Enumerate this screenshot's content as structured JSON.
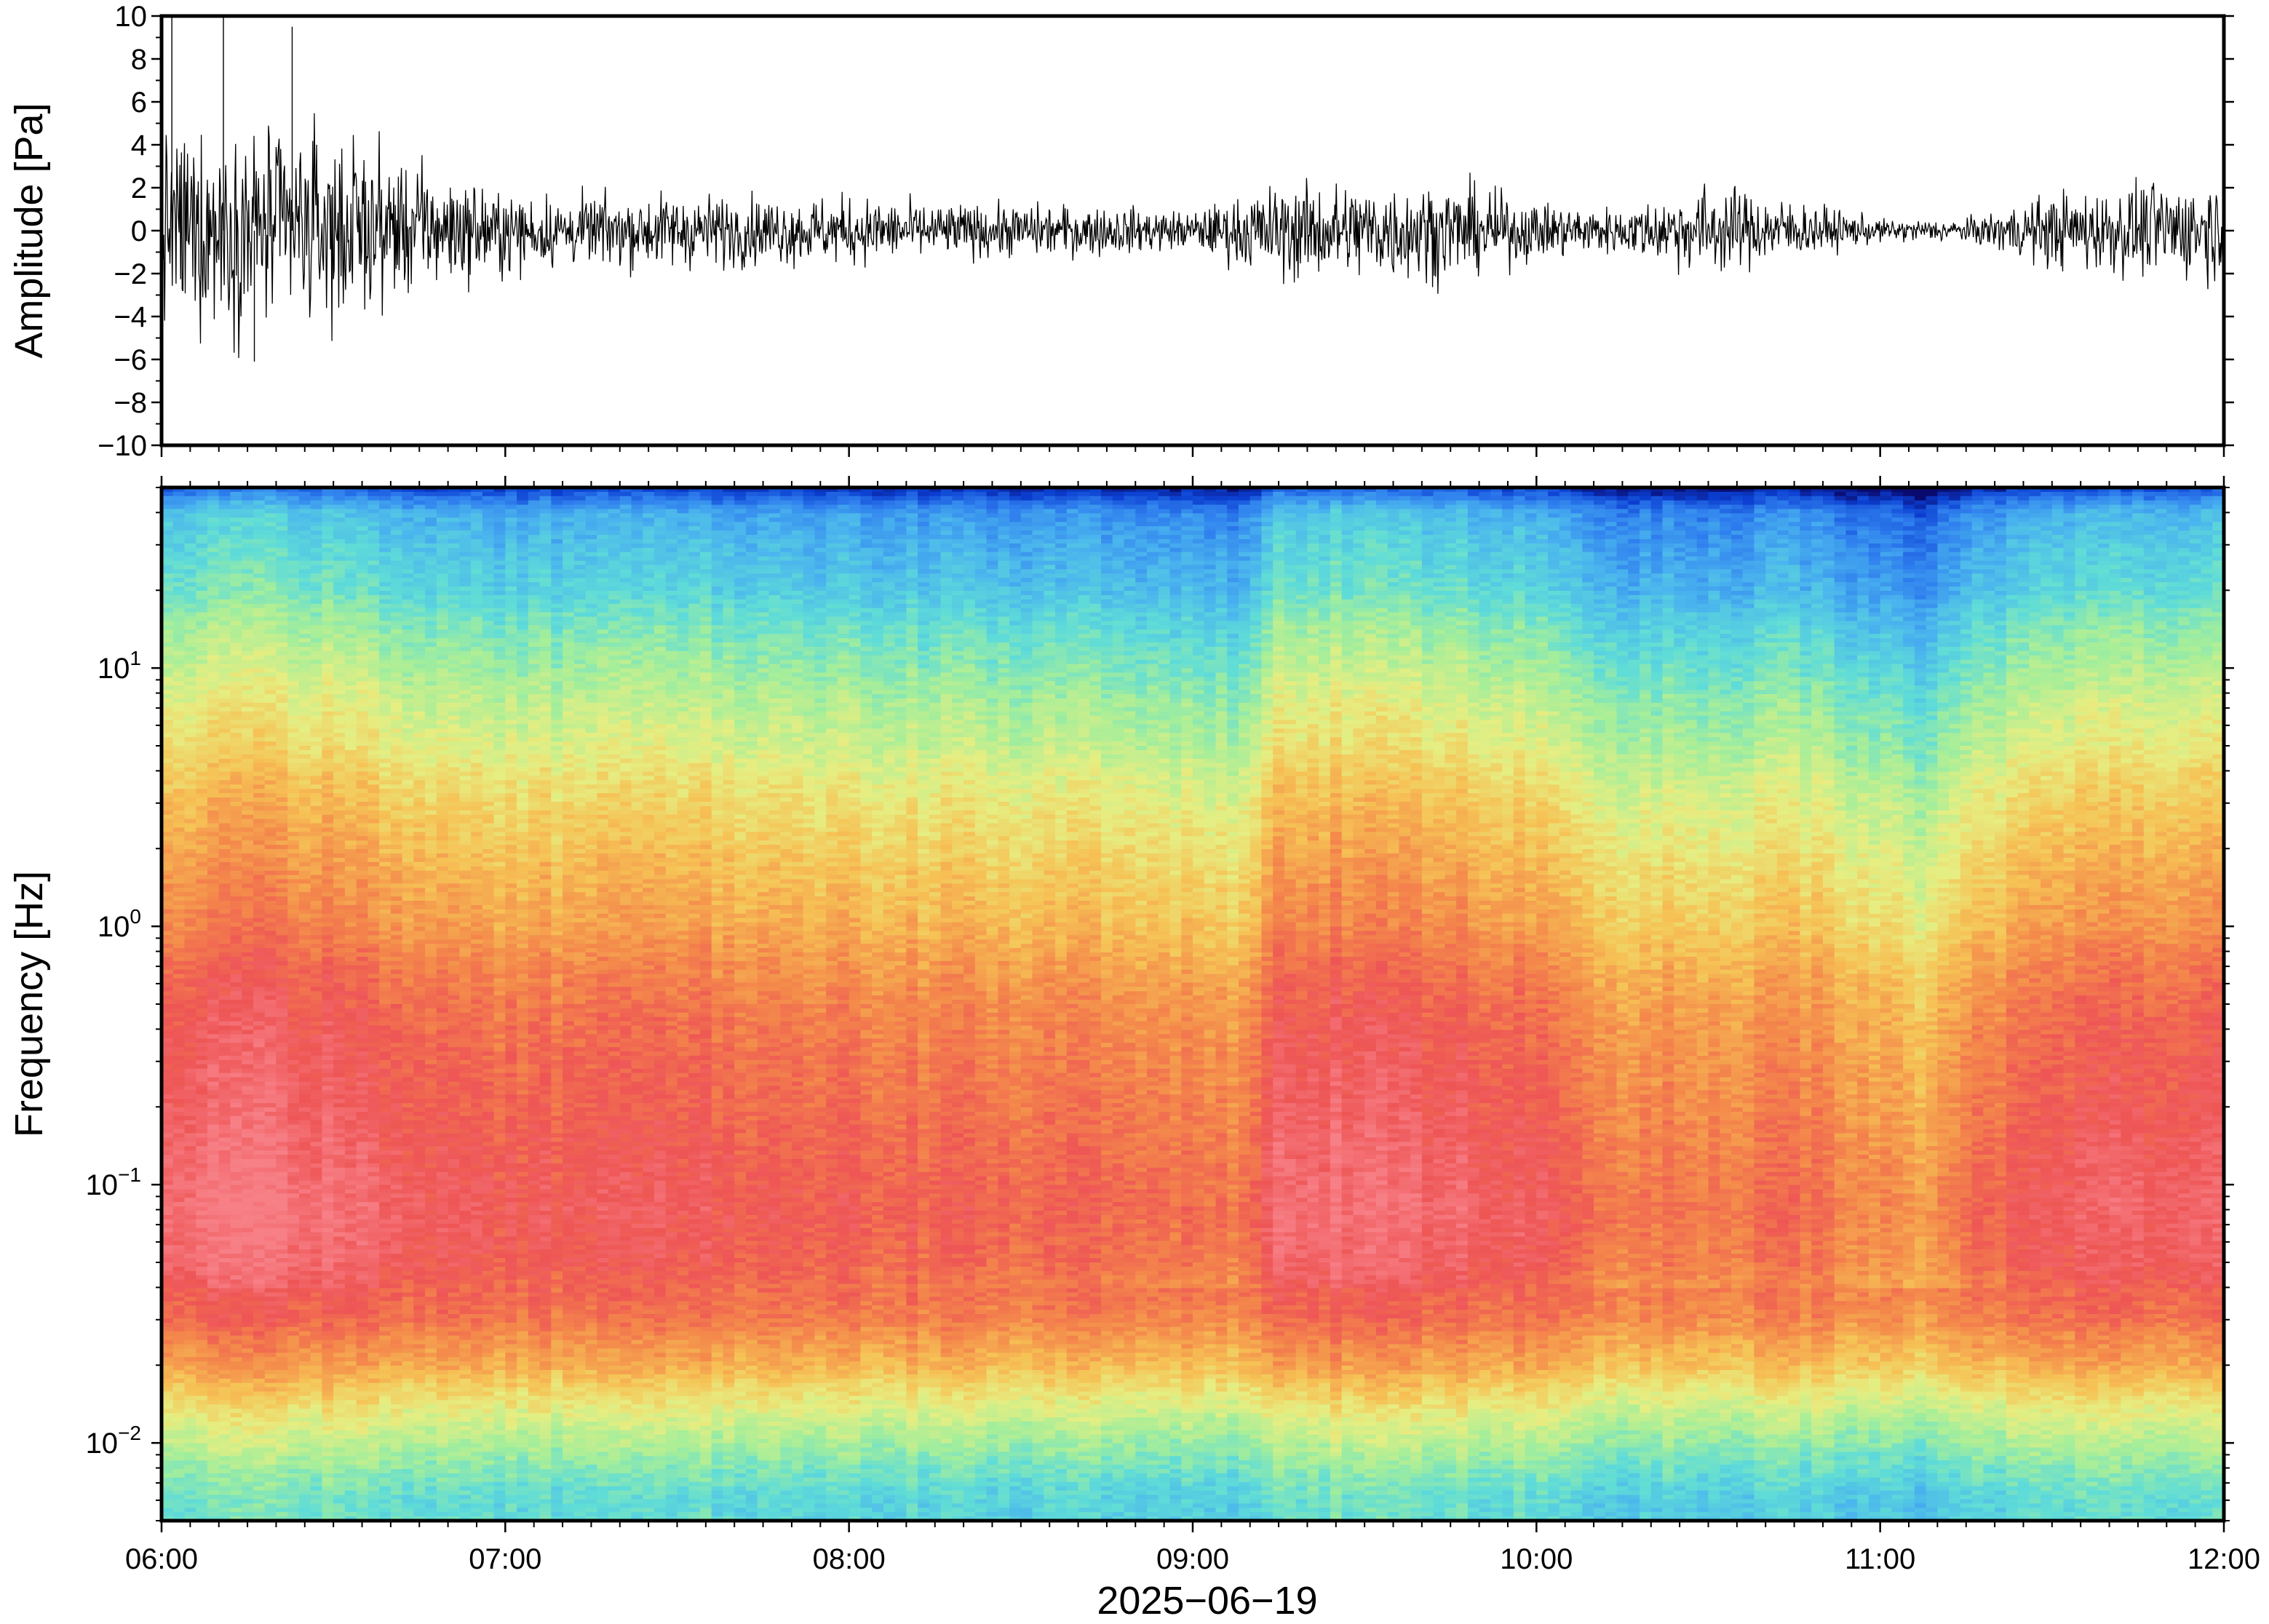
{
  "chart_data": [
    {
      "type": "line",
      "panel": "waveform",
      "ylabel": "Amplitude [Pa]",
      "xlabel": "",
      "ylim": [
        -10,
        10
      ],
      "yticks": [
        {
          "value": 10,
          "label": "10"
        },
        {
          "value": 8,
          "label": "8"
        },
        {
          "value": 6,
          "label": "6"
        },
        {
          "value": 4,
          "label": "4"
        },
        {
          "value": 2,
          "label": "2"
        },
        {
          "value": 0,
          "label": "0"
        },
        {
          "value": -2,
          "label": "−2"
        },
        {
          "value": -4,
          "label": "−4"
        },
        {
          "value": -6,
          "label": "−6"
        },
        {
          "value": -8,
          "label": "−8"
        },
        {
          "value": -10,
          "label": "−10"
        }
      ],
      "xlim_hours": [
        6,
        12
      ],
      "line_color": "#000000",
      "envelope": {
        "x_hours": [
          6.0,
          6.25,
          6.5,
          6.75,
          7.0,
          7.25,
          7.5,
          7.75,
          8.0,
          8.25,
          8.5,
          8.75,
          9.0,
          9.25,
          9.5,
          9.75,
          10.0,
          10.25,
          10.5,
          10.75,
          11.0,
          11.25,
          11.5,
          11.75,
          12.0
        ],
        "max_pa": [
          5.0,
          5.5,
          5.0,
          3.5,
          2.0,
          1.8,
          2.0,
          1.8,
          1.8,
          1.4,
          1.4,
          1.3,
          1.0,
          2.5,
          2.6,
          2.6,
          1.5,
          1.2,
          2.5,
          1.6,
          0.6,
          0.6,
          2.0,
          2.5,
          2.8
        ],
        "min_pa": [
          -4.8,
          -5.2,
          -4.8,
          -3.2,
          -2.2,
          -1.8,
          -2.0,
          -1.8,
          -1.8,
          -1.4,
          -1.4,
          -1.3,
          -1.0,
          -2.6,
          -2.6,
          -2.6,
          -1.5,
          -1.2,
          -2.4,
          -1.5,
          -0.6,
          -0.6,
          -2.0,
          -2.4,
          -2.6
        ]
      },
      "peaks": [
        {
          "x_hours": 6.03,
          "value": 10
        },
        {
          "x_hours": 6.18,
          "value": 10
        },
        {
          "x_hours": 6.38,
          "value": 9.5
        },
        {
          "x_hours": 6.27,
          "value": -6.1
        }
      ]
    },
    {
      "type": "heatmap",
      "panel": "spectrogram",
      "ylabel": "Frequency [Hz]",
      "xlabel": "2025−06−19",
      "yscale": "log",
      "ylim": [
        0.005,
        50
      ],
      "yticks": [
        {
          "value": 10,
          "base": "10",
          "exp": "1"
        },
        {
          "value": 1,
          "base": "10",
          "exp": "0"
        },
        {
          "value": 0.1,
          "base": "10",
          "exp": "−1"
        },
        {
          "value": 0.01,
          "base": "10",
          "exp": "−2"
        }
      ],
      "xlim_hours": [
        6,
        12
      ],
      "xticks": [
        {
          "value": 6,
          "label": "06:00"
        },
        {
          "value": 7,
          "label": "07:00"
        },
        {
          "value": 8,
          "label": "08:00"
        },
        {
          "value": 9,
          "label": "09:00"
        },
        {
          "value": 10,
          "label": "10:00"
        },
        {
          "value": 11,
          "label": "11:00"
        },
        {
          "value": 12,
          "label": "12:00"
        }
      ],
      "colormap": [
        "#0a0a6e",
        "#0b3fd1",
        "#2f7fee",
        "#4ab4ee",
        "#5fdcd8",
        "#a5ee9a",
        "#e6ee82",
        "#f6c255",
        "#f4894b",
        "#ee5555",
        "#f77f86"
      ],
      "relative_power_by_frequency": {
        "freq_hz": [
          0.006,
          0.01,
          0.015,
          0.02,
          0.03,
          0.05,
          0.08,
          0.1,
          0.2,
          0.5,
          1,
          2,
          5,
          10,
          20,
          40,
          50
        ],
        "level": [
          0.4,
          0.52,
          0.64,
          0.74,
          0.84,
          0.9,
          0.92,
          0.91,
          0.88,
          0.84,
          0.76,
          0.7,
          0.59,
          0.5,
          0.38,
          0.29,
          0.1
        ]
      },
      "relative_power_by_time": {
        "x_hours": [
          6.0,
          6.25,
          6.5,
          6.75,
          7.0,
          7.25,
          7.5,
          7.75,
          8.0,
          8.25,
          8.5,
          8.75,
          9.0,
          9.15,
          9.25,
          9.5,
          9.75,
          10.0,
          10.25,
          10.5,
          10.75,
          11.0,
          11.15,
          11.3,
          11.5,
          11.75,
          12.0
        ],
        "offset": [
          0.05,
          0.07,
          0.05,
          0.0,
          -0.02,
          0.0,
          0.0,
          -0.02,
          -0.03,
          -0.04,
          -0.04,
          -0.05,
          -0.07,
          -0.08,
          0.06,
          0.05,
          0.04,
          0.0,
          -0.08,
          -0.08,
          -0.06,
          -0.13,
          -0.15,
          -0.05,
          0.0,
          0.03,
          0.04
        ]
      }
    }
  ]
}
